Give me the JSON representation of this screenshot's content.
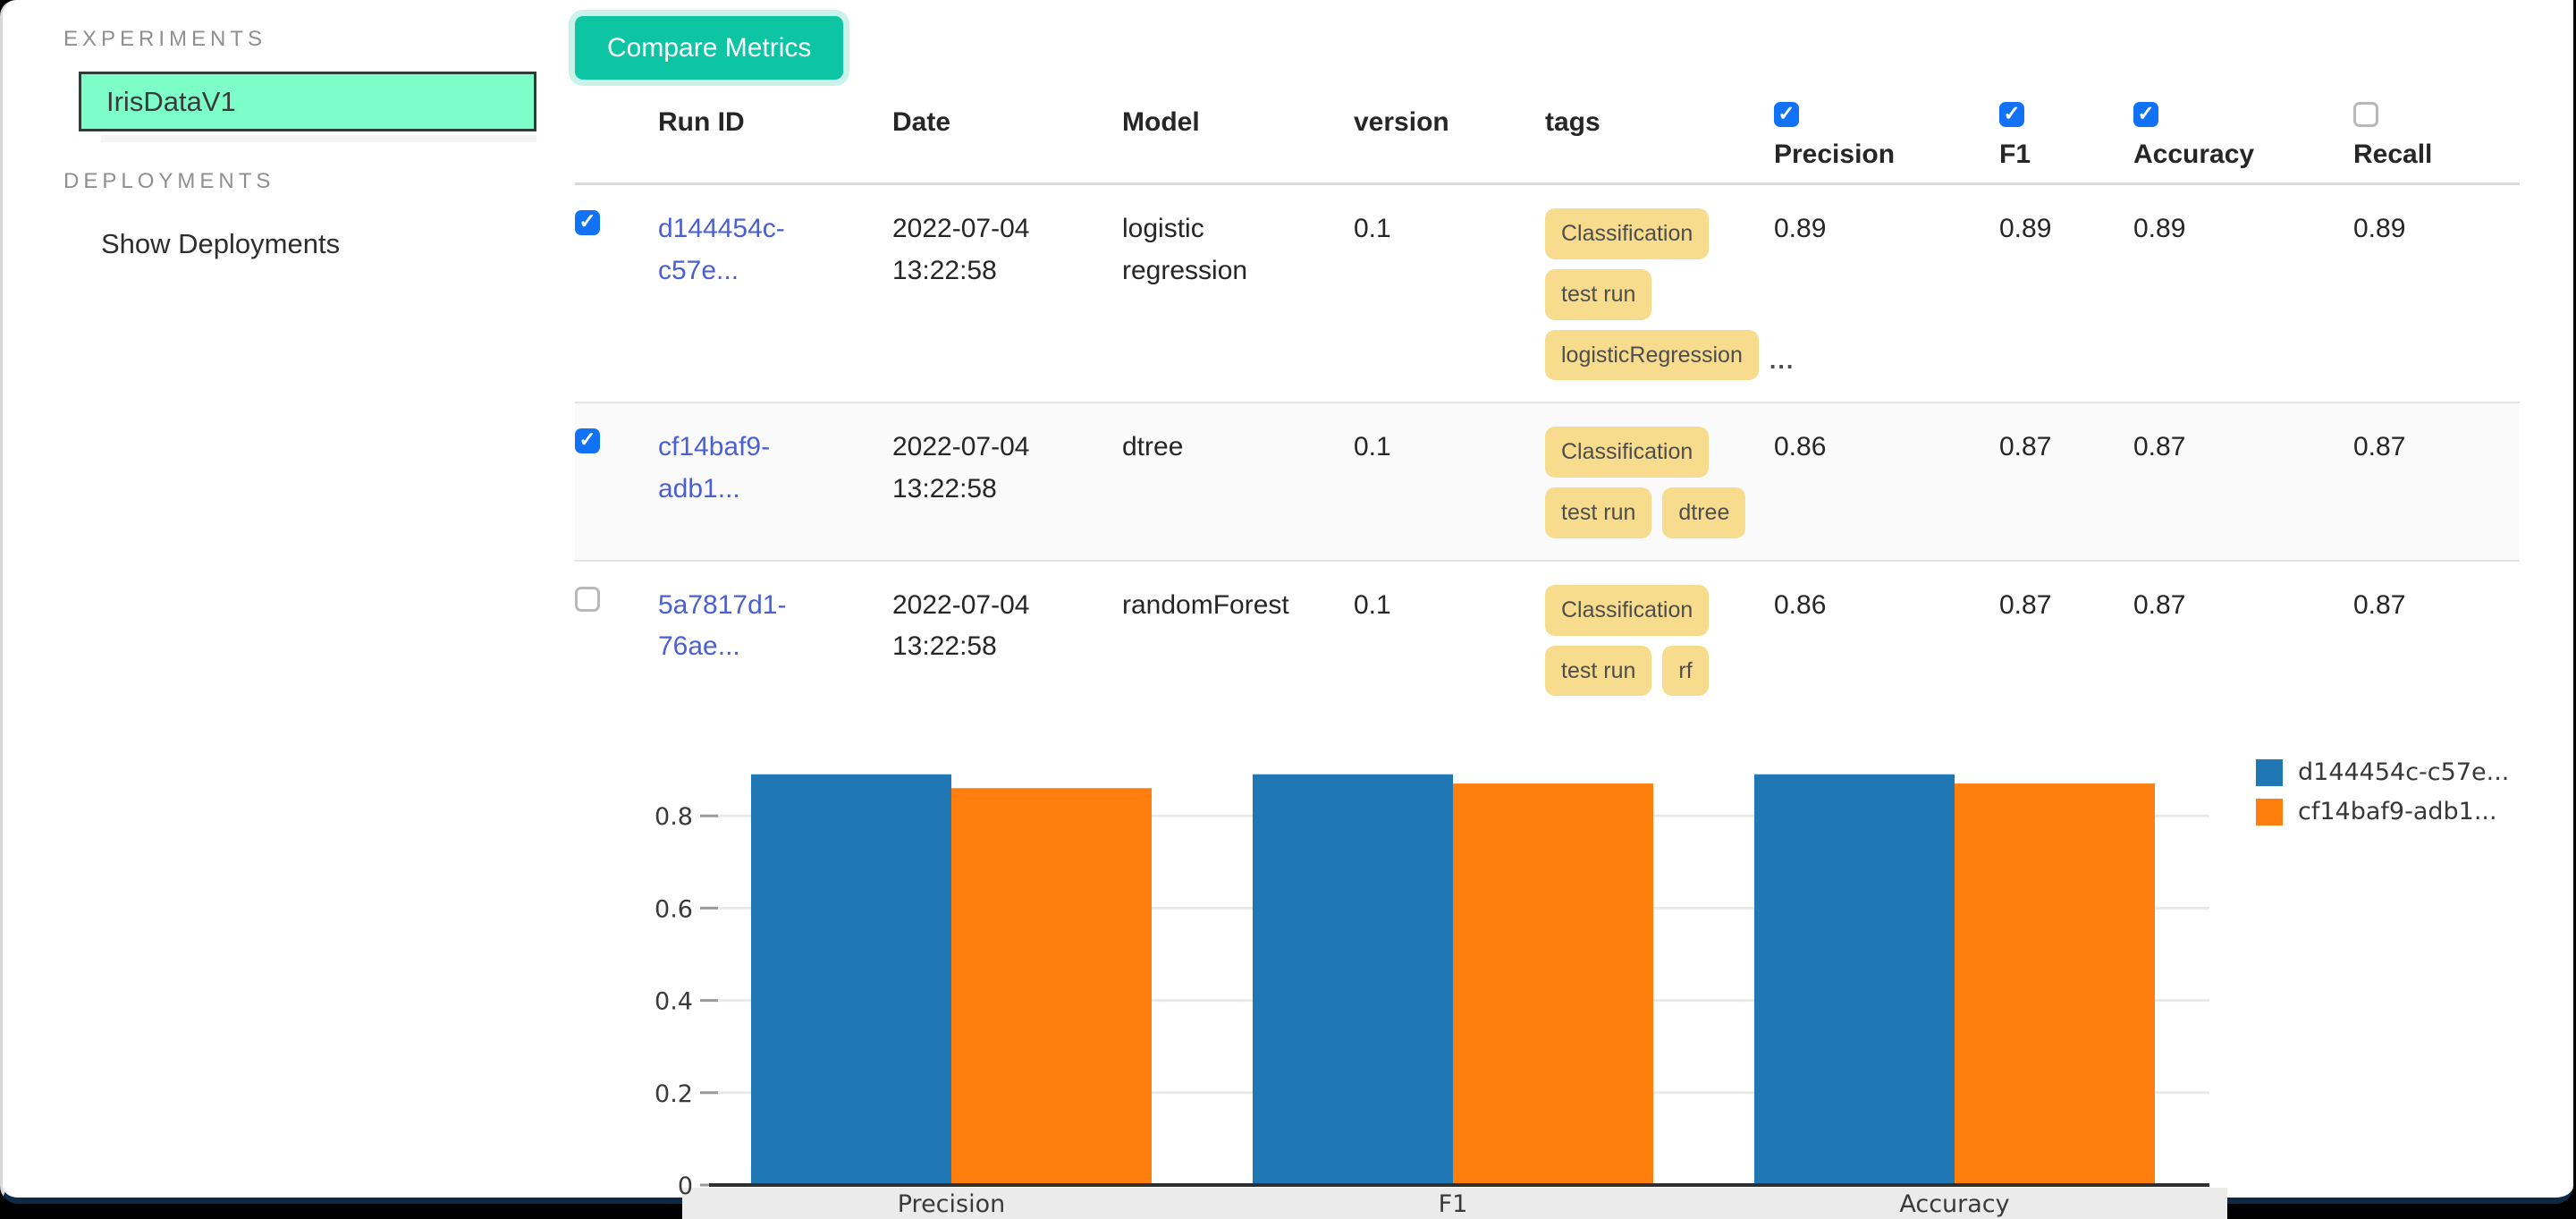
{
  "sidebar": {
    "experiments_label": "EXPERIMENTS",
    "selected_experiment": "IrisDataV1",
    "deployments_label": "DEPLOYMENTS",
    "show_deployments_label": "Show Deployments"
  },
  "toolbar": {
    "compare_metrics_label": "Compare Metrics"
  },
  "table": {
    "columns": {
      "run_id": "Run ID",
      "date": "Date",
      "model": "Model",
      "version": "version",
      "tags": "tags",
      "precision": "Precision",
      "f1": "F1",
      "accuracy": "Accuracy",
      "recall": "Recall"
    },
    "metric_checkboxes": {
      "precision": true,
      "f1": true,
      "accuracy": true,
      "recall": false
    },
    "rows": [
      {
        "selected": true,
        "run_id": "d144454c-c57e...",
        "date": "2022-07-04 13:22:58",
        "model": "logistic regression",
        "version": "0.1",
        "tags": [
          "Classification",
          "test run",
          "logisticRegression"
        ],
        "tags_overflow": "...",
        "precision": "0.89",
        "f1": "0.89",
        "accuracy": "0.89",
        "recall": "0.89"
      },
      {
        "selected": true,
        "run_id": "cf14baf9-adb1...",
        "date": "2022-07-04 13:22:58",
        "model": "dtree",
        "version": "0.1",
        "tags": [
          "Classification",
          "test run",
          "dtree"
        ],
        "tags_overflow": "",
        "precision": "0.86",
        "f1": "0.87",
        "accuracy": "0.87",
        "recall": "0.87"
      },
      {
        "selected": false,
        "run_id": "5a7817d1-76ae...",
        "date": "2022-07-04 13:22:58",
        "model": "randomForest",
        "version": "0.1",
        "tags": [
          "Classification",
          "test run",
          "rf"
        ],
        "tags_overflow": "",
        "precision": "0.86",
        "f1": "0.87",
        "accuracy": "0.87",
        "recall": "0.87"
      }
    ]
  },
  "chart_data": {
    "type": "bar",
    "categories": [
      "Precision",
      "F1",
      "Accuracy"
    ],
    "series": [
      {
        "name": "d144454c-c57e...",
        "color": "#1f77b4",
        "values": [
          0.89,
          0.89,
          0.89
        ]
      },
      {
        "name": "cf14baf9-adb1...",
        "color": "#ff7f0e",
        "values": [
          0.86,
          0.87,
          0.87
        ]
      }
    ],
    "title": "",
    "xlabel": "",
    "ylabel": "",
    "ylim": [
      0,
      0.94
    ],
    "yticks": [
      0,
      0.2,
      0.4,
      0.6,
      0.8
    ],
    "grid": true,
    "legend_position": "outside-upper-right"
  },
  "colors": {
    "accent_teal": "#0dc5a2",
    "selected_experiment_bg": "#7dfec9",
    "checkbox_blue": "#1272f5",
    "link_blue": "#4a5fd1",
    "tag_yellow": "#f8dc8d",
    "bar_blue": "#1f77b4",
    "bar_orange": "#ff7f0e"
  }
}
